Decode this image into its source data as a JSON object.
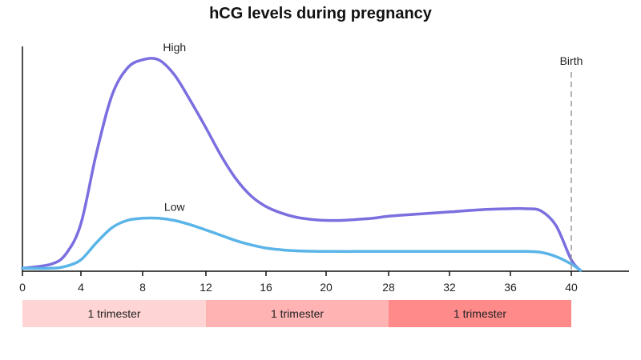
{
  "chart_data": {
    "type": "line",
    "title": "hCG levels during pregnancy",
    "xlabel": "",
    "ylabel": "",
    "x_ticks": [
      "0",
      "4",
      "8",
      "12",
      "16",
      "20",
      "28",
      "32",
      "36",
      "40"
    ],
    "series": [
      {
        "name": "High",
        "color": "#7b6fe0",
        "points": [
          [
            0,
            0.01
          ],
          [
            2,
            0.03
          ],
          [
            3,
            0.08
          ],
          [
            4,
            0.22
          ],
          [
            5,
            0.55
          ],
          [
            6,
            0.82
          ],
          [
            7,
            0.95
          ],
          [
            8,
            0.99
          ],
          [
            9,
            0.99
          ],
          [
            10,
            0.92
          ],
          [
            11,
            0.8
          ],
          [
            12,
            0.67
          ],
          [
            13,
            0.54
          ],
          [
            14,
            0.43
          ],
          [
            15,
            0.35
          ],
          [
            16,
            0.3
          ],
          [
            17,
            0.27
          ],
          [
            18,
            0.25
          ],
          [
            19,
            0.24
          ],
          [
            20,
            0.235
          ],
          [
            22,
            0.235
          ],
          [
            24,
            0.24
          ],
          [
            26,
            0.245
          ],
          [
            28,
            0.255
          ],
          [
            30,
            0.265
          ],
          [
            32,
            0.275
          ],
          [
            34,
            0.285
          ],
          [
            36,
            0.29
          ],
          [
            37,
            0.29
          ],
          [
            38,
            0.28
          ],
          [
            39,
            0.21
          ],
          [
            40,
            0.05
          ],
          [
            40.6,
            0.0
          ]
        ]
      },
      {
        "name": "Low",
        "color": "#5ab4e8",
        "points": [
          [
            0,
            0.01
          ],
          [
            2,
            0.01
          ],
          [
            3,
            0.02
          ],
          [
            4,
            0.05
          ],
          [
            5,
            0.13
          ],
          [
            6,
            0.2
          ],
          [
            7,
            0.235
          ],
          [
            8,
            0.245
          ],
          [
            9,
            0.245
          ],
          [
            10,
            0.235
          ],
          [
            11,
            0.215
          ],
          [
            12,
            0.19
          ],
          [
            13,
            0.165
          ],
          [
            14,
            0.14
          ],
          [
            15,
            0.12
          ],
          [
            16,
            0.105
          ],
          [
            17,
            0.097
          ],
          [
            18,
            0.092
          ],
          [
            19,
            0.09
          ],
          [
            20,
            0.089
          ],
          [
            24,
            0.089
          ],
          [
            28,
            0.089
          ],
          [
            32,
            0.089
          ],
          [
            36,
            0.089
          ],
          [
            37,
            0.089
          ],
          [
            38,
            0.085
          ],
          [
            39,
            0.065
          ],
          [
            40,
            0.03
          ],
          [
            40.6,
            0.0
          ]
        ]
      }
    ],
    "series_labels": [
      {
        "text": "High",
        "x": 9,
        "y": 1.0
      },
      {
        "text": "Low",
        "x": 9,
        "y": 0.25
      }
    ],
    "annotations": [
      {
        "text": "Birth",
        "x": 40,
        "style": "dashed-vertical-line"
      }
    ],
    "trimester_bands": [
      {
        "label": "1 trimester",
        "start": 0,
        "end": 12,
        "color": "#ffd4d4"
      },
      {
        "label": "1 trimester",
        "start": 12,
        "end": 28,
        "color": "#ffb3b3"
      },
      {
        "label": "1 trimester",
        "start": 28,
        "end": 40,
        "color": "#ff8a8a"
      }
    ],
    "xlim": [
      0,
      42.5
    ],
    "ylim": [
      0,
      1.0
    ],
    "grid": false,
    "legend": "none"
  }
}
